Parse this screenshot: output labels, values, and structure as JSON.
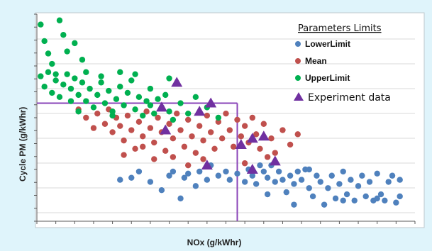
{
  "chart_data": {
    "type": "scatter",
    "xlabel": "NOx (g/kWhr)",
    "ylabel": "Cycle PM (g/kWhr)",
    "x_tick_labels_visible": false,
    "y_tick_labels_visible": false,
    "grid": "horizontal",
    "legend": {
      "title": "Parameters Limits",
      "placement": "top-right"
    },
    "x_range": [
      0,
      10
    ],
    "y_range": [
      0,
      1
    ],
    "limit_lines": {
      "x": 5.3,
      "y": 0.57,
      "color": "#8a44b8"
    },
    "series": [
      {
        "name": "LowerLimit",
        "marker": "circle",
        "color": "#4f81bd",
        "points": [
          [
            2.2,
            0.2
          ],
          [
            2.5,
            0.21
          ],
          [
            2.7,
            0.24
          ],
          [
            3.0,
            0.19
          ],
          [
            3.3,
            0.15
          ],
          [
            3.5,
            0.22
          ],
          [
            3.6,
            0.24
          ],
          [
            3.8,
            0.11
          ],
          [
            3.9,
            0.21
          ],
          [
            4.0,
            0.23
          ],
          [
            4.2,
            0.17
          ],
          [
            4.3,
            0.24
          ],
          [
            4.5,
            0.2
          ],
          [
            4.6,
            0.27
          ],
          [
            4.8,
            0.22
          ],
          [
            5.0,
            0.24
          ],
          [
            5.1,
            0.2
          ],
          [
            5.3,
            0.23
          ],
          [
            5.5,
            0.19
          ],
          [
            5.6,
            0.25
          ],
          [
            5.7,
            0.22
          ],
          [
            5.8,
            0.18
          ],
          [
            5.9,
            0.27
          ],
          [
            6.0,
            0.24
          ],
          [
            6.1,
            0.21
          ],
          [
            6.2,
            0.27
          ],
          [
            6.3,
            0.19
          ],
          [
            6.4,
            0.24
          ],
          [
            6.5,
            0.2
          ],
          [
            6.6,
            0.14
          ],
          [
            6.7,
            0.22
          ],
          [
            6.8,
            0.18
          ],
          [
            6.9,
            0.24
          ],
          [
            7.0,
            0.2
          ],
          [
            7.1,
            0.25
          ],
          [
            7.2,
            0.16
          ],
          [
            7.3,
            0.12
          ],
          [
            7.4,
            0.22
          ],
          [
            7.5,
            0.19
          ],
          [
            7.6,
            0.08
          ],
          [
            7.7,
            0.16
          ],
          [
            7.8,
            0.22
          ],
          [
            7.9,
            0.11
          ],
          [
            8.0,
            0.18
          ],
          [
            8.1,
            0.24
          ],
          [
            8.2,
            0.13
          ],
          [
            8.3,
            0.2
          ],
          [
            8.4,
            0.1
          ],
          [
            8.5,
            0.17
          ],
          [
            8.6,
            0.22
          ],
          [
            8.7,
            0.12
          ],
          [
            8.8,
            0.19
          ],
          [
            8.9,
            0.1
          ],
          [
            9.0,
            0.23
          ],
          [
            9.1,
            0.13
          ],
          [
            9.2,
            0.1
          ],
          [
            9.3,
            0.19
          ],
          [
            9.4,
            0.22
          ],
          [
            9.5,
            0.09
          ],
          [
            9.6,
            0.2
          ],
          [
            6.1,
            0.13
          ],
          [
            6.8,
            0.08
          ],
          [
            7.2,
            0.25
          ],
          [
            8.1,
            0.1
          ],
          [
            9.0,
            0.11
          ],
          [
            9.6,
            0.12
          ]
        ]
      },
      {
        "name": "Mean",
        "marker": "circle",
        "color": "#c0504d",
        "points": [
          [
            1.1,
            0.54
          ],
          [
            1.3,
            0.5
          ],
          [
            1.5,
            0.45
          ],
          [
            1.6,
            0.52
          ],
          [
            1.8,
            0.47
          ],
          [
            1.9,
            0.54
          ],
          [
            2.0,
            0.43
          ],
          [
            2.1,
            0.5
          ],
          [
            2.2,
            0.46
          ],
          [
            2.3,
            0.39
          ],
          [
            2.4,
            0.51
          ],
          [
            2.5,
            0.44
          ],
          [
            2.6,
            0.35
          ],
          [
            2.7,
            0.48
          ],
          [
            2.8,
            0.41
          ],
          [
            2.9,
            0.53
          ],
          [
            3.0,
            0.45
          ],
          [
            3.1,
            0.38
          ],
          [
            3.2,
            0.5
          ],
          [
            3.3,
            0.43
          ],
          [
            3.4,
            0.34
          ],
          [
            3.5,
            0.47
          ],
          [
            3.6,
            0.4
          ],
          [
            3.7,
            0.52
          ],
          [
            3.8,
            0.44
          ],
          [
            3.9,
            0.36
          ],
          [
            4.0,
            0.49
          ],
          [
            4.1,
            0.41
          ],
          [
            4.2,
            0.33
          ],
          [
            4.3,
            0.46
          ],
          [
            4.4,
            0.39
          ],
          [
            4.5,
            0.51
          ],
          [
            4.6,
            0.43
          ],
          [
            4.7,
            0.35
          ],
          [
            4.8,
            0.48
          ],
          [
            4.9,
            0.4
          ],
          [
            5.0,
            0.52
          ],
          [
            5.1,
            0.44
          ],
          [
            5.2,
            0.36
          ],
          [
            5.3,
            0.49
          ],
          [
            5.4,
            0.41
          ],
          [
            5.5,
            0.46
          ],
          [
            5.6,
            0.38
          ],
          [
            5.7,
            0.5
          ],
          [
            5.8,
            0.42
          ],
          [
            5.9,
            0.35
          ],
          [
            6.0,
            0.47
          ],
          [
            6.2,
            0.4
          ],
          [
            6.3,
            0.33
          ],
          [
            6.5,
            0.44
          ],
          [
            6.7,
            0.37
          ],
          [
            6.9,
            0.42
          ],
          [
            2.3,
            0.32
          ],
          [
            3.1,
            0.3
          ],
          [
            4.0,
            0.27
          ],
          [
            4.4,
            0.3
          ],
          [
            3.6,
            0.31
          ],
          [
            2.8,
            0.36
          ],
          [
            5.5,
            0.28
          ],
          [
            6.1,
            0.31
          ]
        ]
      },
      {
        "name": "UpperLimit",
        "marker": "circle",
        "color": "#00b050",
        "points": [
          [
            0.1,
            0.95
          ],
          [
            0.2,
            0.87
          ],
          [
            0.3,
            0.81
          ],
          [
            0.4,
            0.76
          ],
          [
            0.5,
            0.71
          ],
          [
            0.6,
            0.97
          ],
          [
            0.7,
            0.9
          ],
          [
            0.8,
            0.82
          ],
          [
            1.0,
            0.86
          ],
          [
            1.2,
            0.78
          ],
          [
            0.1,
            0.7
          ],
          [
            0.2,
            0.65
          ],
          [
            0.3,
            0.72
          ],
          [
            0.4,
            0.62
          ],
          [
            0.5,
            0.68
          ],
          [
            0.6,
            0.6
          ],
          [
            0.7,
            0.66
          ],
          [
            0.8,
            0.71
          ],
          [
            0.9,
            0.64
          ],
          [
            1.0,
            0.69
          ],
          [
            1.1,
            0.61
          ],
          [
            1.2,
            0.67
          ],
          [
            1.3,
            0.58
          ],
          [
            1.4,
            0.64
          ],
          [
            1.5,
            0.55
          ],
          [
            1.6,
            0.61
          ],
          [
            1.7,
            0.67
          ],
          [
            1.8,
            0.57
          ],
          [
            1.9,
            0.63
          ],
          [
            2.0,
            0.53
          ],
          [
            2.1,
            0.59
          ],
          [
            2.2,
            0.65
          ],
          [
            2.3,
            0.56
          ],
          [
            2.4,
            0.62
          ],
          [
            2.5,
            0.68
          ],
          [
            2.6,
            0.54
          ],
          [
            2.7,
            0.6
          ],
          [
            2.8,
            0.51
          ],
          [
            2.9,
            0.58
          ],
          [
            3.0,
            0.64
          ],
          [
            3.1,
            0.52
          ],
          [
            3.2,
            0.59
          ],
          [
            3.3,
            0.55
          ],
          [
            3.4,
            0.61
          ],
          [
            3.5,
            0.53
          ],
          [
            3.6,
            0.49
          ],
          [
            3.8,
            0.57
          ],
          [
            4.0,
            0.52
          ],
          [
            4.2,
            0.6
          ],
          [
            4.5,
            0.55
          ],
          [
            4.8,
            0.5
          ],
          [
            1.3,
            0.72
          ],
          [
            1.7,
            0.7
          ],
          [
            2.2,
            0.72
          ],
          [
            2.6,
            0.71
          ],
          [
            3.0,
            0.56
          ],
          [
            3.5,
            0.69
          ],
          [
            0.9,
            0.58
          ],
          [
            1.1,
            0.53
          ],
          [
            2.0,
            0.51
          ]
        ]
      },
      {
        "name": "Experiment data",
        "marker": "triangle",
        "color": "#7030a0",
        "points": [
          [
            3.3,
            0.55
          ],
          [
            3.7,
            0.67
          ],
          [
            3.4,
            0.44
          ],
          [
            4.3,
            0.53
          ],
          [
            4.5,
            0.27
          ],
          [
            5.4,
            0.37
          ],
          [
            6.0,
            0.41
          ],
          [
            6.3,
            0.29
          ],
          [
            5.7,
            0.25
          ],
          [
            4.6,
            0.57
          ],
          [
            5.7,
            0.4
          ]
        ]
      }
    ]
  }
}
